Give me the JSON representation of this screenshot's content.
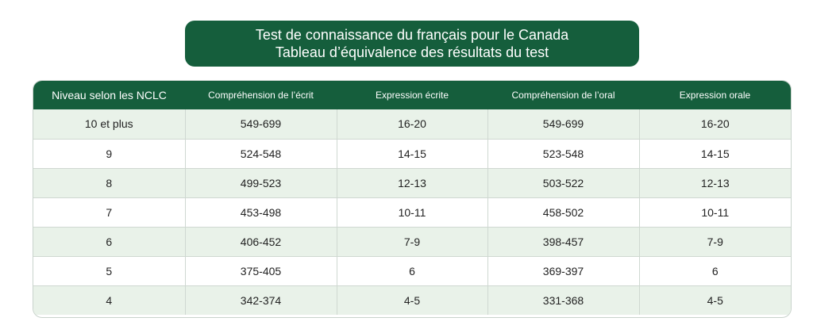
{
  "title": {
    "line1": "Test de connaissance du français pour le Canada",
    "line2": "Tableau d’équivalence des résultats du test"
  },
  "table": {
    "headers": [
      "Niveau selon les NCLC",
      "Compréhension de l’écrit",
      "Expression écrite",
      "Compréhension de l’oral",
      "Expression orale"
    ],
    "rows": [
      [
        "10 et plus",
        "549-699",
        "16-20",
        "549-699",
        "16-20"
      ],
      [
        "9",
        "524-548",
        "14-15",
        "523-548",
        "14-15"
      ],
      [
        "8",
        "499-523",
        "12-13",
        "503-522",
        "12-13"
      ],
      [
        "7",
        "453-498",
        "10-11",
        "458-502",
        "10-11"
      ],
      [
        "6",
        "406-452",
        "7-9",
        "398-457",
        "7-9"
      ],
      [
        "5",
        "375-405",
        "6",
        "369-397",
        "6"
      ],
      [
        "4",
        "342-374",
        "4-5",
        "331-368",
        "4-5"
      ]
    ]
  },
  "colors": {
    "header_green": "#155e3c",
    "row_tint": "#e9f2e9"
  }
}
